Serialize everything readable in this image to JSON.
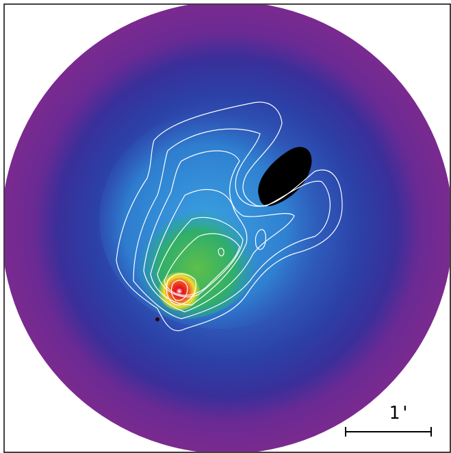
{
  "scale_bar": {
    "label": "1'"
  }
}
